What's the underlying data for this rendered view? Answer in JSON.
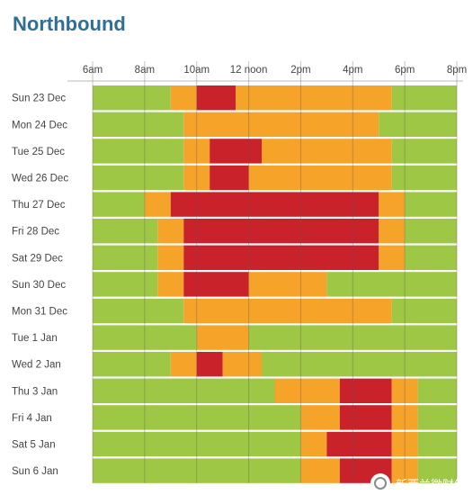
{
  "title": "Northbound",
  "watermark": "新西兰微财经",
  "colors": {
    "green": "#9dc744",
    "orange": "#f6a32a",
    "red": "#c9222b",
    "title": "#2f6f95"
  },
  "chart_data": {
    "type": "heatmap",
    "title": "Northbound",
    "x_ticks": [
      "6am",
      "8am",
      "10am",
      "12 noon",
      "2pm",
      "4pm",
      "6pm",
      "8pm"
    ],
    "x_range_hours": [
      6,
      20
    ],
    "legend": [
      {
        "level": "green",
        "color": "#9dc744"
      },
      {
        "level": "orange",
        "color": "#f6a32a"
      },
      {
        "level": "red",
        "color": "#c9222b"
      }
    ],
    "rows": [
      {
        "label": "Sun 23 Dec",
        "segments": [
          [
            6,
            9,
            "green"
          ],
          [
            9,
            10,
            "orange"
          ],
          [
            10,
            11.5,
            "red"
          ],
          [
            11.5,
            17.5,
            "orange"
          ],
          [
            17.5,
            20,
            "green"
          ]
        ]
      },
      {
        "label": "Mon 24 Dec",
        "segments": [
          [
            6,
            9.5,
            "green"
          ],
          [
            9.5,
            17,
            "orange"
          ],
          [
            17,
            20,
            "green"
          ]
        ]
      },
      {
        "label": "Tue 25 Dec",
        "segments": [
          [
            6,
            9.5,
            "green"
          ],
          [
            9.5,
            10.5,
            "orange"
          ],
          [
            10.5,
            12.5,
            "red"
          ],
          [
            12.5,
            17.5,
            "orange"
          ],
          [
            17.5,
            20,
            "green"
          ]
        ]
      },
      {
        "label": "Wed 26 Dec",
        "segments": [
          [
            6,
            9.5,
            "green"
          ],
          [
            9.5,
            10.5,
            "orange"
          ],
          [
            10.5,
            12,
            "red"
          ],
          [
            12,
            17.5,
            "orange"
          ],
          [
            17.5,
            20,
            "green"
          ]
        ]
      },
      {
        "label": "Thu 27 Dec",
        "segments": [
          [
            6,
            8,
            "green"
          ],
          [
            8,
            9,
            "orange"
          ],
          [
            9,
            17,
            "red"
          ],
          [
            17,
            18,
            "orange"
          ],
          [
            18,
            20,
            "green"
          ]
        ]
      },
      {
        "label": "Fri 28 Dec",
        "segments": [
          [
            6,
            8.5,
            "green"
          ],
          [
            8.5,
            9.5,
            "orange"
          ],
          [
            9.5,
            17,
            "red"
          ],
          [
            17,
            18,
            "orange"
          ],
          [
            18,
            20,
            "green"
          ]
        ]
      },
      {
        "label": "Sat 29 Dec",
        "segments": [
          [
            6,
            8.5,
            "green"
          ],
          [
            8.5,
            9.5,
            "orange"
          ],
          [
            9.5,
            17,
            "red"
          ],
          [
            17,
            18,
            "orange"
          ],
          [
            18,
            20,
            "green"
          ]
        ]
      },
      {
        "label": "Sun 30 Dec",
        "segments": [
          [
            6,
            8.5,
            "green"
          ],
          [
            8.5,
            9.5,
            "orange"
          ],
          [
            9.5,
            12,
            "red"
          ],
          [
            12,
            15,
            "orange"
          ],
          [
            15,
            20,
            "green"
          ]
        ]
      },
      {
        "label": "Mon 31 Dec",
        "segments": [
          [
            6,
            9.5,
            "green"
          ],
          [
            9.5,
            17.5,
            "orange"
          ],
          [
            17.5,
            20,
            "green"
          ]
        ]
      },
      {
        "label": "Tue 1 Jan",
        "segments": [
          [
            6,
            10,
            "green"
          ],
          [
            10,
            12,
            "orange"
          ],
          [
            12,
            20,
            "green"
          ]
        ]
      },
      {
        "label": "Wed 2 Jan",
        "segments": [
          [
            6,
            9,
            "green"
          ],
          [
            9,
            10,
            "orange"
          ],
          [
            10,
            11,
            "red"
          ],
          [
            11,
            12.5,
            "orange"
          ],
          [
            12.5,
            20,
            "green"
          ]
        ]
      },
      {
        "label": "Thu 3 Jan",
        "segments": [
          [
            6,
            13,
            "green"
          ],
          [
            13,
            15.5,
            "orange"
          ],
          [
            15.5,
            17.5,
            "red"
          ],
          [
            17.5,
            18.5,
            "orange"
          ],
          [
            18.5,
            20,
            "green"
          ]
        ]
      },
      {
        "label": "Fri 4 Jan",
        "segments": [
          [
            6,
            14,
            "green"
          ],
          [
            14,
            15.5,
            "orange"
          ],
          [
            15.5,
            17.5,
            "red"
          ],
          [
            17.5,
            18.5,
            "orange"
          ],
          [
            18.5,
            20,
            "green"
          ]
        ]
      },
      {
        "label": "Sat 5 Jan",
        "segments": [
          [
            6,
            14,
            "green"
          ],
          [
            14,
            15,
            "orange"
          ],
          [
            15,
            17.5,
            "red"
          ],
          [
            17.5,
            18.5,
            "orange"
          ],
          [
            18.5,
            20,
            "green"
          ]
        ]
      },
      {
        "label": "Sun 6 Jan",
        "segments": [
          [
            6,
            14,
            "green"
          ],
          [
            14,
            15.5,
            "orange"
          ],
          [
            15.5,
            17.5,
            "red"
          ],
          [
            17.5,
            18.5,
            "orange"
          ],
          [
            18.5,
            20,
            "green"
          ]
        ]
      }
    ]
  }
}
